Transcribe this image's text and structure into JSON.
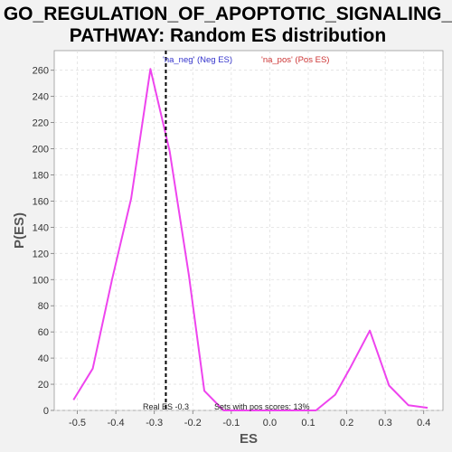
{
  "chart_data": {
    "type": "line",
    "title_line1": "GO_REGULATION_OF_APOPTOTIC_SIGNALING_",
    "title_line2": "PATHWAY: Random ES distribution",
    "xlabel": "ES",
    "ylabel": "P(ES)",
    "xlim": [
      -0.56,
      0.45
    ],
    "ylim": [
      0,
      275
    ],
    "x_ticks": [
      -0.5,
      -0.4,
      -0.3,
      -0.2,
      -0.1,
      0.0,
      0.1,
      0.2,
      0.3,
      0.4
    ],
    "x_tick_labels": [
      "-0.5",
      "-0.4",
      "-0.3",
      "-0.2",
      "-0.1",
      "0.0",
      "0.1",
      "0.2",
      "0.3",
      "0.4"
    ],
    "y_ticks": [
      0,
      20,
      40,
      60,
      80,
      100,
      120,
      140,
      160,
      180,
      200,
      220,
      240,
      260
    ],
    "y_tick_labels": [
      "0",
      "20",
      "40",
      "60",
      "80",
      "100",
      "120",
      "140",
      "160",
      "180",
      "200",
      "220",
      "240",
      "260"
    ],
    "grid": true,
    "legend": [
      {
        "label": "'na_neg' (Neg ES)",
        "color": "#3333cc"
      },
      {
        "label": "'na_pos' (Pos ES)",
        "color": "#cc3333"
      }
    ],
    "series": [
      {
        "color": "#ee44ee",
        "x": [
          -0.51,
          -0.46,
          -0.41,
          -0.36,
          -0.31,
          -0.26,
          -0.21,
          -0.17,
          -0.12,
          0.12,
          0.17,
          0.21,
          0.26,
          0.31,
          0.36,
          0.41
        ],
        "y": [
          8,
          32,
          100,
          162,
          261,
          198,
          103,
          15,
          0,
          0,
          12,
          33,
          61,
          19,
          4,
          2
        ]
      }
    ],
    "real_es": -0.27,
    "real_es_line_color": "#000000",
    "annotations": {
      "real_es": "Real ES -0.3",
      "pos_scores": "Sets with pos scores: 13%"
    }
  }
}
